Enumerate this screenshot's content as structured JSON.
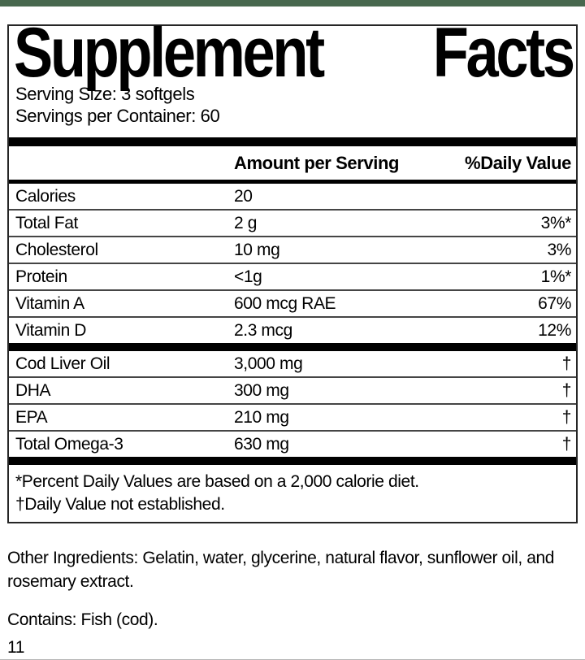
{
  "colors": {
    "accent_green": "#48684e",
    "bar_black": "#000000"
  },
  "label": {
    "title": {
      "word1": "Supplement",
      "word2": "Facts"
    },
    "serving_size": "Serving Size: 3 softgels",
    "servings_per_container": "Servings per Container: 60",
    "header": {
      "amount": "Amount per Serving",
      "daily_value": "%Daily Value"
    },
    "nutrient_rows": [
      {
        "name": "Calories",
        "amount": "20",
        "dv": ""
      },
      {
        "name": "Total Fat",
        "amount": "2 g",
        "dv": "3%*"
      },
      {
        "name": "Cholesterol",
        "amount": "10 mg",
        "dv": "3%"
      },
      {
        "name": "Protein",
        "amount": "<1g",
        "dv": "1%*"
      },
      {
        "name": "Vitamin A",
        "amount": "600 mcg RAE",
        "dv": "67%"
      },
      {
        "name": "Vitamin D",
        "amount": "2.3 mcg",
        "dv": "12%"
      }
    ],
    "ingredient_rows": [
      {
        "name": "Cod Liver Oil",
        "amount": "3,000 mg",
        "dv": "†"
      },
      {
        "name": "DHA",
        "amount": "300 mg",
        "dv": "†"
      },
      {
        "name": "EPA",
        "amount": "210 mg",
        "dv": "†"
      },
      {
        "name": "Total Omega-3",
        "amount": "630 mg",
        "dv": "†"
      }
    ],
    "footnotes": [
      "*Percent Daily Values are based on a 2,000 calorie diet.",
      "†Daily Value not established."
    ]
  },
  "below": {
    "other_ingredients": "Other Ingredients: Gelatin, water, glycerine, natural flavor, sunflower oil, and rosemary extract.",
    "contains": "Contains: Fish (cod).",
    "page_number": "11"
  }
}
